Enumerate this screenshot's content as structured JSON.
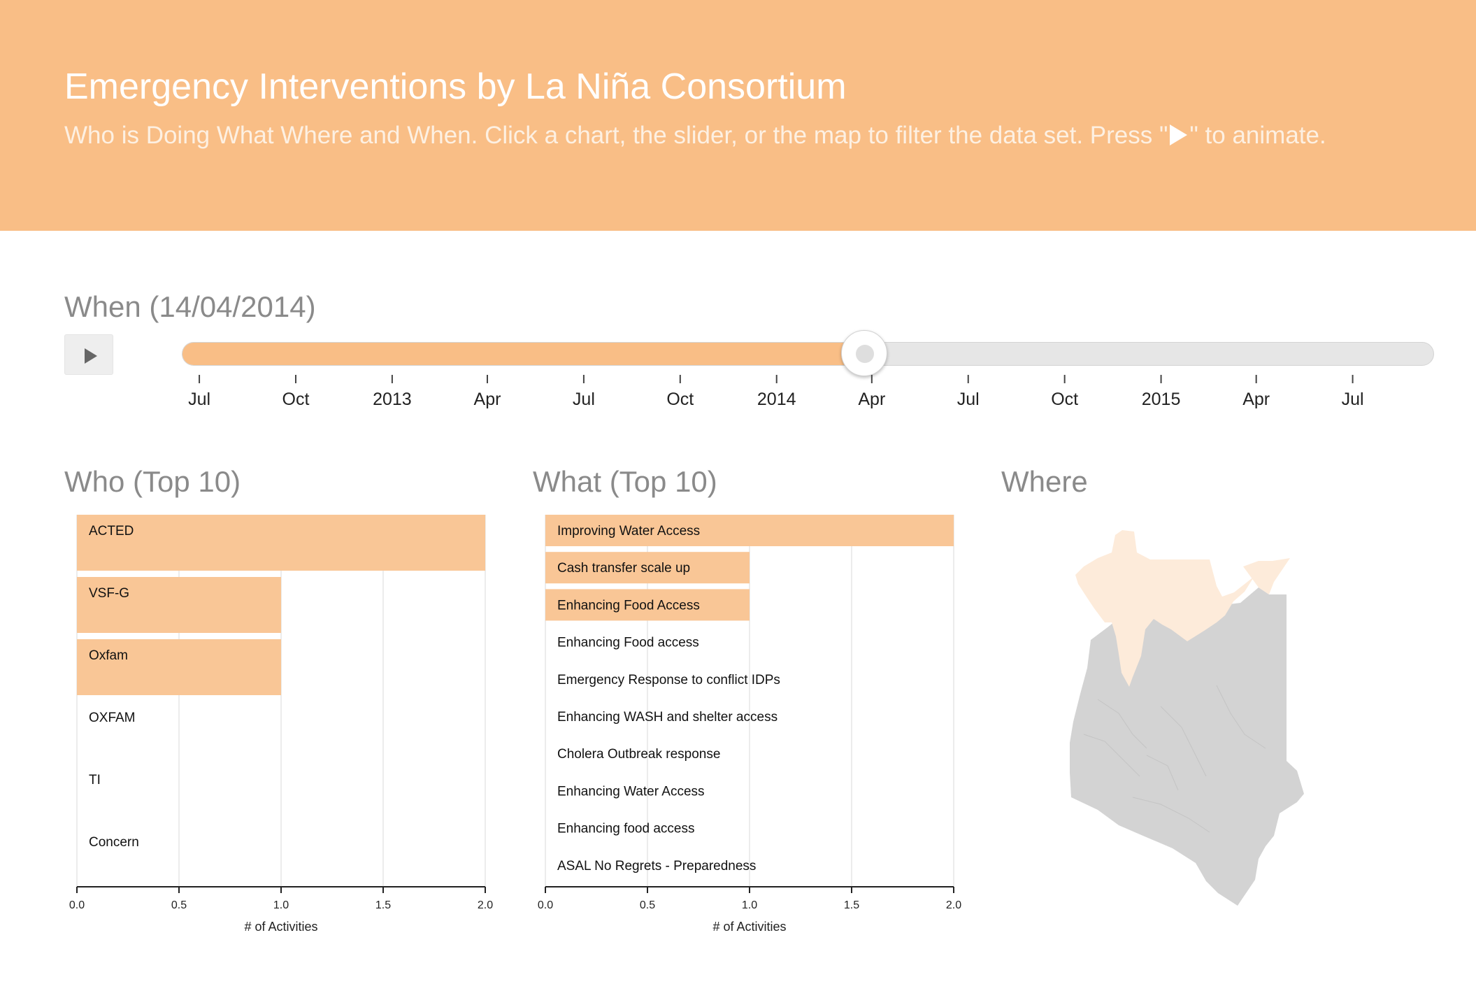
{
  "header": {
    "title": "Emergency Interventions by La Niña Consortium",
    "subtitle_before": "Who is Doing What Where and When. Click a chart, the slider, or the map to filter the data set. Press \"",
    "subtitle_after": "\" to animate."
  },
  "when": {
    "title": "When (14/04/2014)",
    "progress": 0.545,
    "ticks": [
      {
        "label": "Jul",
        "pos": 0.014
      },
      {
        "label": "Oct",
        "pos": 0.091
      },
      {
        "label": "2013",
        "pos": 0.168
      },
      {
        "label": "Apr",
        "pos": 0.244
      },
      {
        "label": "Jul",
        "pos": 0.321
      },
      {
        "label": "Oct",
        "pos": 0.398
      },
      {
        "label": "2014",
        "pos": 0.475
      },
      {
        "label": "Apr",
        "pos": 0.551
      },
      {
        "label": "Jul",
        "pos": 0.628
      },
      {
        "label": "Oct",
        "pos": 0.705
      },
      {
        "label": "2015",
        "pos": 0.782
      },
      {
        "label": "Apr",
        "pos": 0.858
      },
      {
        "label": "Jul",
        "pos": 0.935
      }
    ]
  },
  "who": {
    "title": "Who (Top 10)"
  },
  "what": {
    "title": "What (Top 10)"
  },
  "where": {
    "title": "Where"
  },
  "colors": {
    "accent": "#f9be86",
    "bar": "#f9c696",
    "map_selected": "#fdebda",
    "map_other": "#d3d3d3"
  },
  "chart_data": [
    {
      "type": "bar",
      "orientation": "horizontal",
      "name": "who",
      "categories": [
        "ACTED",
        "VSF-G",
        "Oxfam",
        "OXFAM",
        "TI",
        "Concern"
      ],
      "values": [
        2,
        1,
        1,
        0,
        0,
        0
      ],
      "xlabel": "# of Activities",
      "xlim": [
        0,
        2
      ],
      "xticks": [
        "0.0",
        "0.5",
        "1.0",
        "1.5",
        "2.0"
      ],
      "grid": true
    },
    {
      "type": "bar",
      "orientation": "horizontal",
      "name": "what",
      "categories": [
        "Improving Water Access",
        "Cash transfer scale up",
        "Enhancing Food Access",
        "Enhancing Food access",
        "Emergency Response to conflict IDPs",
        "Enhancing WASH and shelter access",
        "Cholera Outbreak response",
        "Enhancing Water Access",
        "Enhancing food access",
        "ASAL No Regrets - Preparedness"
      ],
      "values": [
        2,
        1,
        1,
        0,
        0,
        0,
        0,
        0,
        0,
        0
      ],
      "xlabel": "# of Activities",
      "xlim": [
        0,
        2
      ],
      "xticks": [
        "0.0",
        "0.5",
        "1.0",
        "1.5",
        "2.0"
      ],
      "grid": true
    }
  ]
}
